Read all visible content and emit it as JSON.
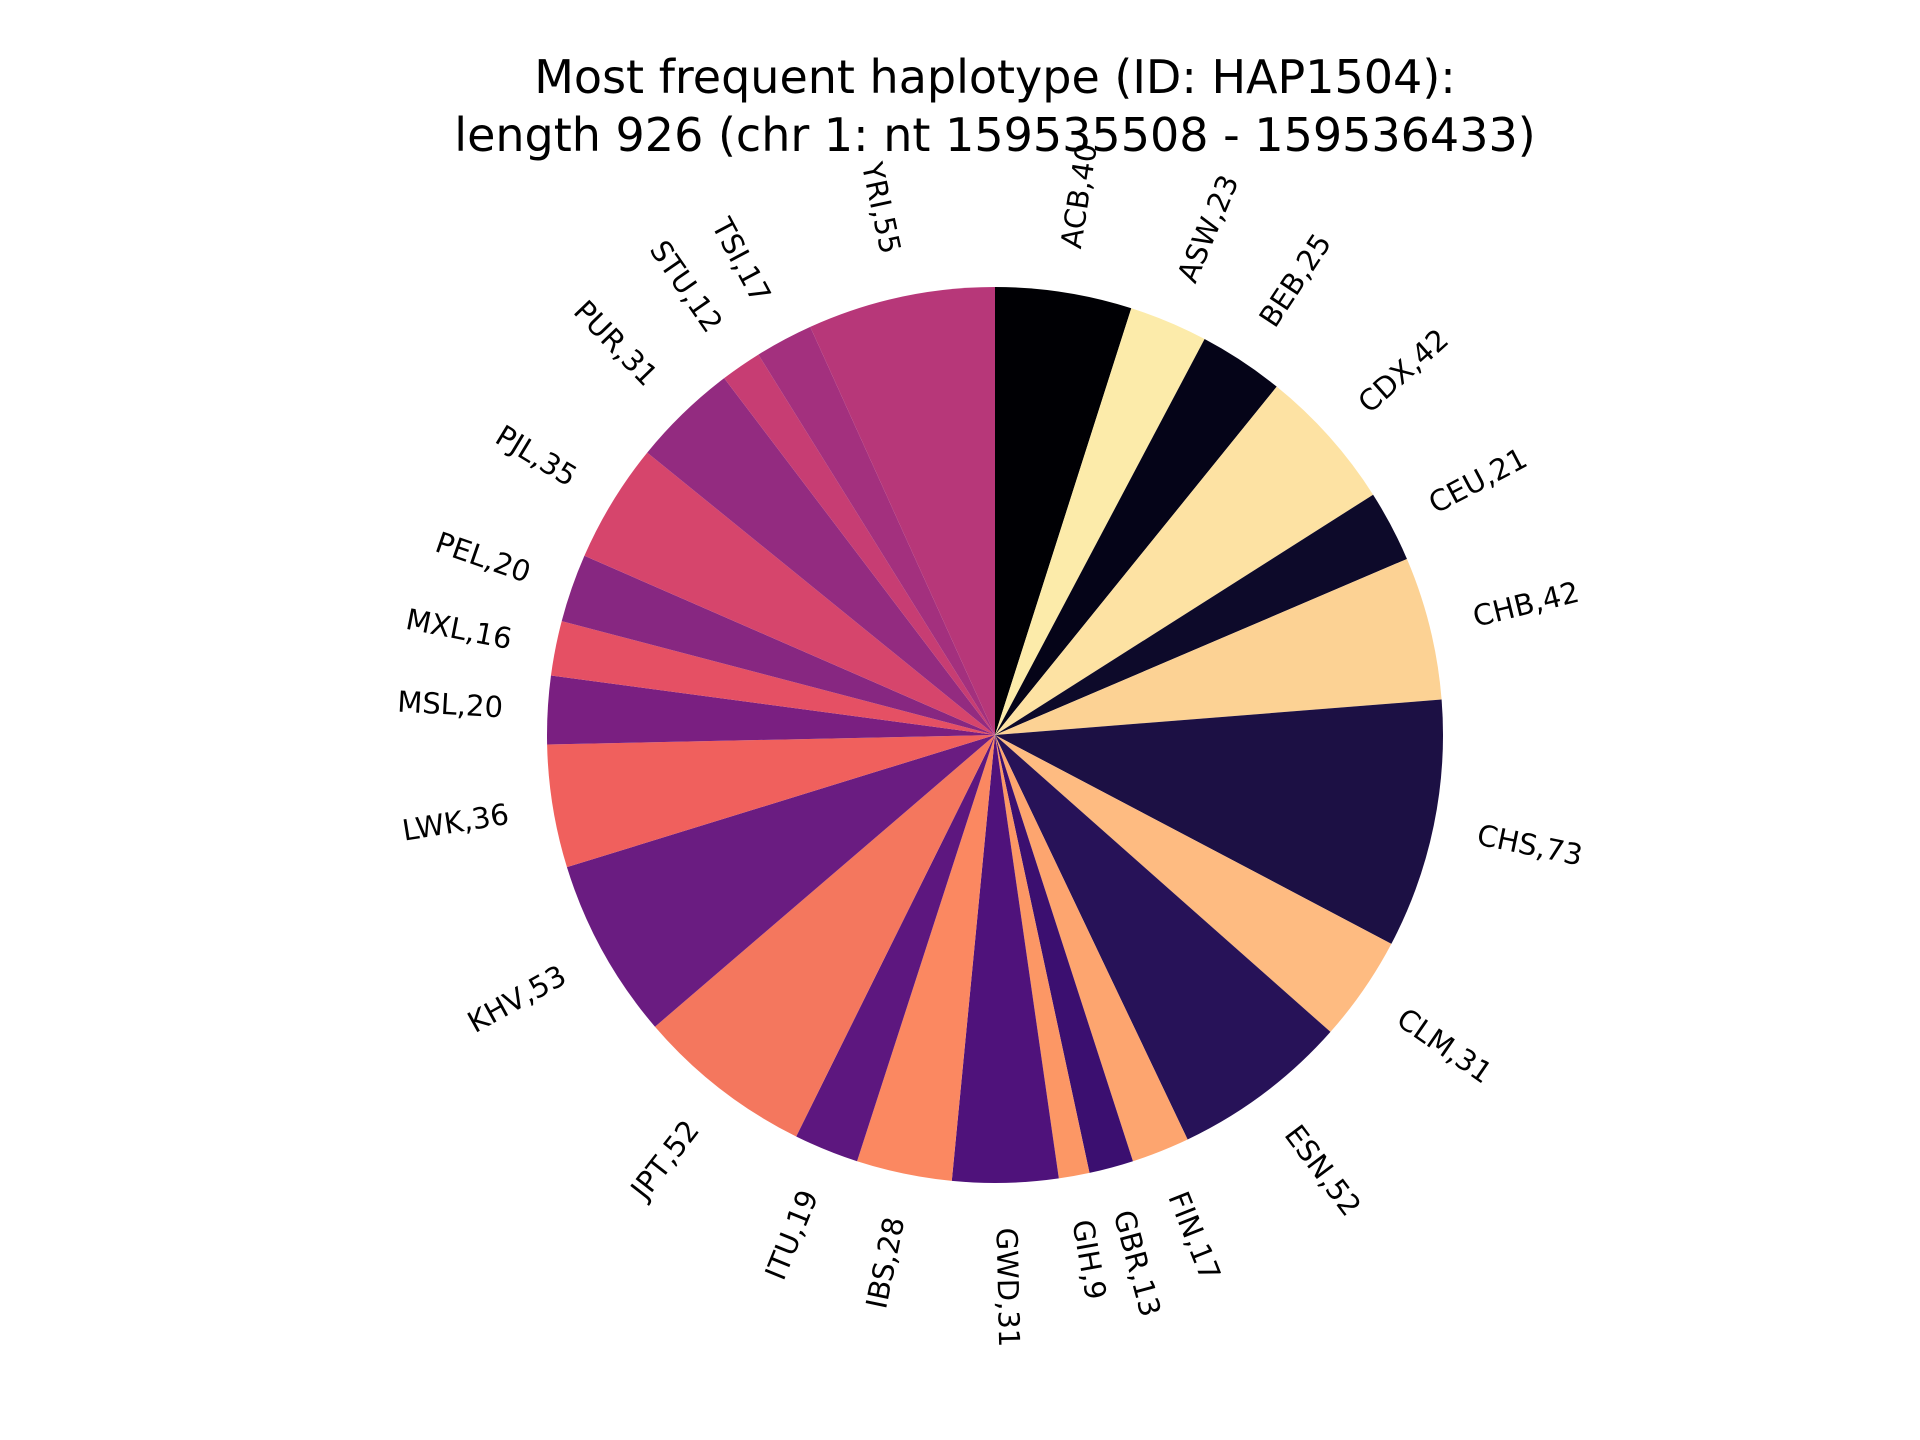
{
  "chart_data": {
    "type": "pie",
    "title_line1": "Most frequent haplotype (ID: HAP1504):",
    "title_line2": "length 926 (chr 1: nt 159535508 - 159536433)",
    "start_angle_deg": 90,
    "direction": "clockwise",
    "slices": [
      {
        "label": "ACB,40",
        "value": 40,
        "color": "#000004"
      },
      {
        "label": "ASW,23",
        "value": 23,
        "color": "#fcebaa"
      },
      {
        "label": "BEB,25",
        "value": 25,
        "color": "#050418"
      },
      {
        "label": "CDX,42",
        "value": 42,
        "color": "#fde2a3"
      },
      {
        "label": "CEU,21",
        "value": 21,
        "color": "#0d0a2a"
      },
      {
        "label": "CHB,42",
        "value": 42,
        "color": "#fcd294"
      },
      {
        "label": "CHS,73",
        "value": 73,
        "color": "#1c1044"
      },
      {
        "label": "CLM,31",
        "value": 31,
        "color": "#febb81"
      },
      {
        "label": "ESN,52",
        "value": 52,
        "color": "#271258"
      },
      {
        "label": "FIN,17",
        "value": 17,
        "color": "#fda56f"
      },
      {
        "label": "GBR,13",
        "value": 13,
        "color": "#3b0f70"
      },
      {
        "label": "GIH,9",
        "value": 9,
        "color": "#fc9765"
      },
      {
        "label": "GWD,31",
        "value": 31,
        "color": "#4f127b"
      },
      {
        "label": "IBS,28",
        "value": 28,
        "color": "#fb8861"
      },
      {
        "label": "ITU,19",
        "value": 19,
        "color": "#5d177f"
      },
      {
        "label": "JPT,52",
        "value": 52,
        "color": "#f4775e"
      },
      {
        "label": "KHV,53",
        "value": 53,
        "color": "#6a1c81"
      },
      {
        "label": "LWK,36",
        "value": 36,
        "color": "#f0605d"
      },
      {
        "label": "MSL,20",
        "value": 20,
        "color": "#7a1f81"
      },
      {
        "label": "MXL,16",
        "value": 16,
        "color": "#e55064"
      },
      {
        "label": "PEL,20",
        "value": 20,
        "color": "#872781"
      },
      {
        "label": "PJL,35",
        "value": 35,
        "color": "#d6456c"
      },
      {
        "label": "PUR,31",
        "value": 31,
        "color": "#932b80"
      },
      {
        "label": "STU,12",
        "value": 12,
        "color": "#c73d73"
      },
      {
        "label": "TSI,17",
        "value": 17,
        "color": "#a3307e"
      },
      {
        "label": "YRI,55",
        "value": 55,
        "color": "#b73779"
      }
    ]
  }
}
